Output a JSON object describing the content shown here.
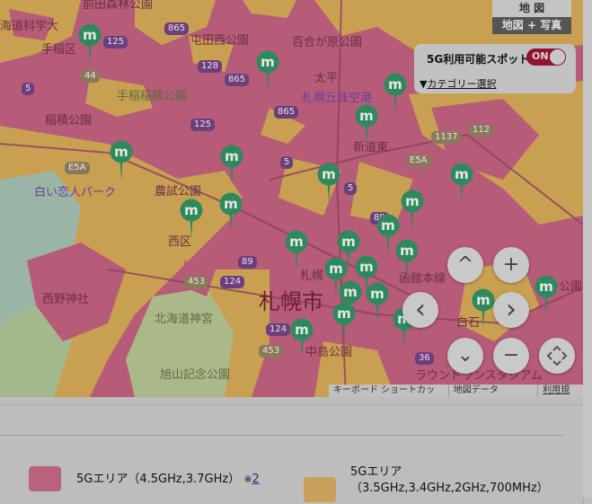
{
  "map": {
    "type_buttons": {
      "map": "地 図",
      "map_photo": "地図 + 写真"
    },
    "spot_panel": {
      "label": "5G利用可能スポット",
      "toggle": "ON",
      "category_arrow": "▼",
      "category_link": "カテゴリー選択"
    },
    "controls": {
      "up": "^",
      "left": "‹",
      "right": "›",
      "down": "⌄",
      "zoom_in": "+",
      "zoom_out": "−"
    },
    "attribution": {
      "shortcuts": "キーボード ショートカット",
      "map_data": "地図データ ©2025",
      "terms": "利用規約"
    },
    "labels": {
      "maeda_park": "前田森林公園",
      "science_univ": "海道科学大",
      "teine_ku": "手稲区",
      "tonden_park": "屯田西公園",
      "yurigahara": "百合が原公園",
      "teine_inazumi_park": "手稲稲積公園",
      "inazumi_park": "稲積公園",
      "taihei": "太平",
      "okadama": "札幌丘珠空港",
      "shindohigashi": "新道東",
      "shiroi_koibito": "白い恋人パーク",
      "noshi_park": "農試公園",
      "nishi_ku": "西区",
      "sapporo_st": "札幌",
      "sapporo_city": "札幌市",
      "hakodate_line": "函館本線",
      "nishino_shrine": "西野神社",
      "hokkaido_jingu": "北海道神宮",
      "nakajima_park": "中島公園",
      "asahiyama_park": "旭山記念公園",
      "shiroishi": "白石",
      "round_one": "ラウンドワンスタジアム",
      "higashi_park": "公園"
    },
    "route_shields": [
      "125",
      "865",
      "128",
      "865",
      "865",
      "125",
      "44",
      "5",
      "5",
      "E5A",
      "1137",
      "112",
      "E5A",
      "89",
      "5",
      "453",
      "124",
      "89",
      "124",
      "453",
      "36"
    ],
    "colors": {
      "area_4_5": "#b65b78",
      "area_3_5": "#c9a052",
      "spot_pin": "#2e8a5c"
    }
  },
  "legend": {
    "items": [
      {
        "label": "5Gエリア（4.5GHz,3.7GHz）",
        "note_prefix": "※",
        "note_link": "2",
        "color": "#b8627b"
      },
      {
        "label_line1": "5Gエリア",
        "label_line2": "（3.5GHz,3.4GHz,2GHz,700MHz）",
        "color": "#c9a05a"
      }
    ]
  }
}
